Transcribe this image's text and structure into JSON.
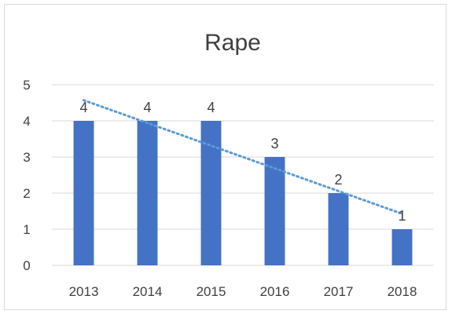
{
  "chart_data": {
    "type": "bar",
    "title": "Rape",
    "categories": [
      "2013",
      "2014",
      "2015",
      "2016",
      "2017",
      "2018"
    ],
    "values": [
      4,
      4,
      4,
      3,
      2,
      1
    ],
    "data_labels": [
      "4",
      "4",
      "4",
      "3",
      "2",
      "1"
    ],
    "ylim": [
      0,
      5
    ],
    "yticks": [
      "0",
      "1",
      "2",
      "3",
      "4",
      "5"
    ],
    "xlabel": "",
    "ylabel": "",
    "grid": true,
    "legend": "none",
    "trendline": {
      "type": "linear",
      "style": "dotted"
    },
    "colors": {
      "bar": "#4472c4",
      "trendline": "#5b9bd5",
      "grid": "#d9d9d9",
      "text": "#404040"
    }
  }
}
